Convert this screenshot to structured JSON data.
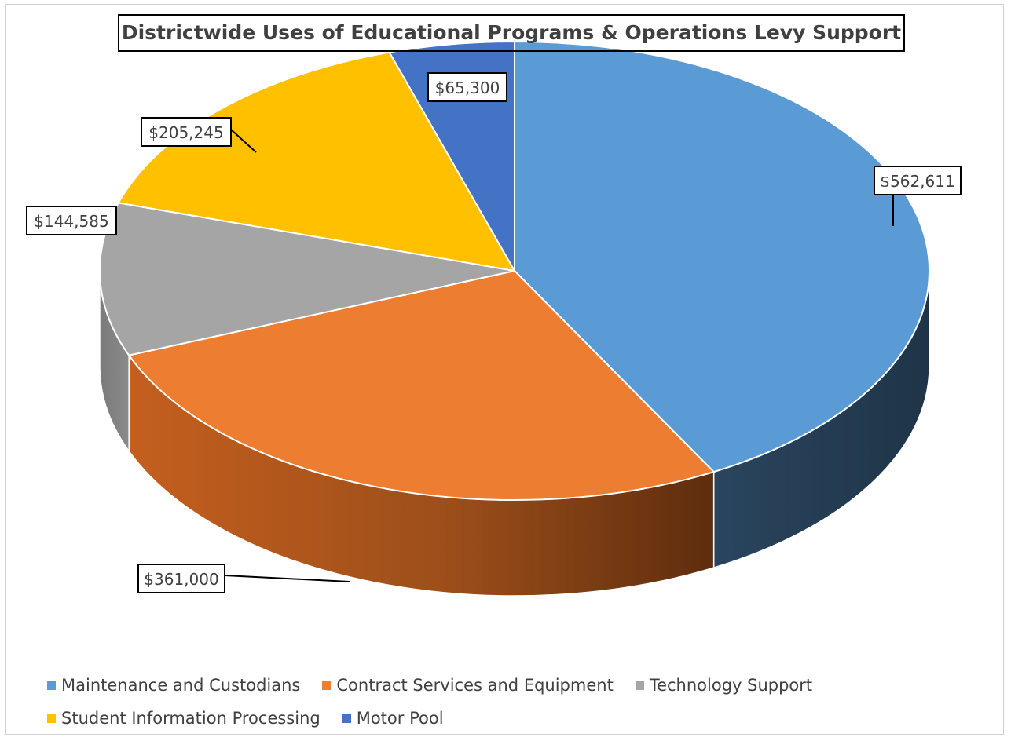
{
  "chart_data": {
    "type": "pie",
    "title": "Districtwide Uses of Educational Programs & Operations Levy Support",
    "categories": [
      "Maintenance and Custodians",
      "Contract Services and Equipment",
      "Technology Support",
      "Student Information Processing",
      "Motor Pool"
    ],
    "values": [
      562611,
      361000,
      144585,
      205245,
      65300
    ],
    "data_labels": [
      "$562,611",
      "$361,000",
      "$144,585",
      "$205,245",
      "$65,300"
    ],
    "colors": [
      "#5b9bd5",
      "#ed7d31",
      "#a5a5a5",
      "#ffc000",
      "#4472c4"
    ],
    "style": "3d",
    "legend_position": "bottom"
  }
}
